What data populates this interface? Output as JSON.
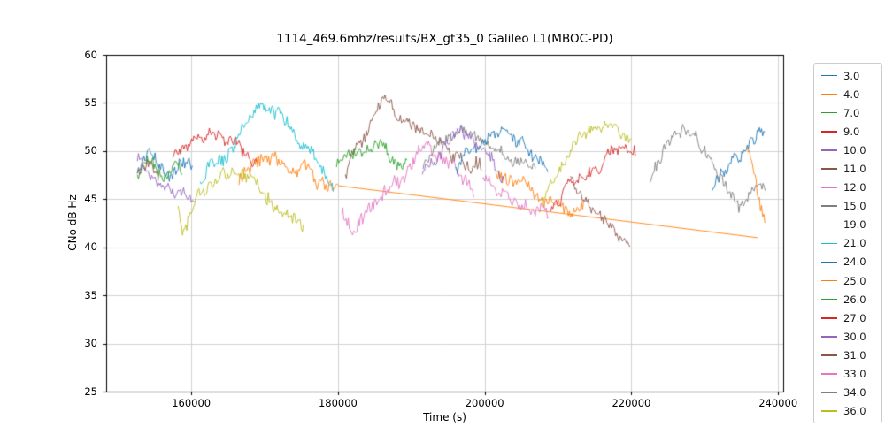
{
  "chart_data": {
    "type": "line",
    "title": "1114_469.6mhz/results/BX_gt35_0 Galileo L1(MBOC-PD)",
    "xlabel": "Time (s)",
    "ylabel": "CNo dB Hz",
    "xlim": [
      148400,
      240700
    ],
    "ylim": [
      25,
      60
    ],
    "xticks": [
      160000,
      180000,
      200000,
      220000,
      240000
    ],
    "yticks": [
      25,
      30,
      35,
      40,
      45,
      50,
      55,
      60
    ],
    "grid": true,
    "legend_position": "right-outside",
    "series": [
      {
        "name": "3.0",
        "color": "#1f77b4",
        "segments": [
          {
            "noise": 1.0,
            "points": [
              [
                152650,
                47.5
              ],
              [
                154500,
                49.6
              ],
              [
                156500,
                47.2
              ],
              [
                158500,
                48.8
              ],
              [
                160200,
                47.6
              ]
            ]
          },
          {
            "noise": 0.9,
            "points": [
              [
                231000,
                46.5
              ],
              [
                233500,
                48.3
              ],
              [
                236000,
                50.6
              ],
              [
                238300,
                52.2
              ]
            ]
          }
        ]
      },
      {
        "name": "4.0",
        "color": "#ff7f0e",
        "segments": [
          {
            "noise": 1.0,
            "points": [
              [
                166500,
                46.6
              ],
              [
                168500,
                49.4
              ],
              [
                171000,
                49.8
              ],
              [
                173500,
                47.2
              ],
              [
                176000,
                48.4
              ],
              [
                178500,
                46.6
              ],
              [
                180000,
                46.4
              ]
            ]
          },
          {
            "noise": 0,
            "points": [
              [
                180000,
                46.4
              ],
              [
                237200,
                41.0
              ]
            ]
          }
        ]
      },
      {
        "name": "7.0",
        "color": "#2ca02c",
        "segments": [
          {
            "noise": 1.0,
            "points": [
              [
                152650,
                47.0
              ],
              [
                154000,
                49.6
              ],
              [
                156000,
                46.6
              ],
              [
                158000,
                48.8
              ],
              [
                158900,
                47.2
              ]
            ]
          }
        ]
      },
      {
        "name": "9.0",
        "color": "#d62728",
        "segments": [
          {
            "noise": 0.9,
            "points": [
              [
                157500,
                49.4
              ],
              [
                160000,
                51.0
              ],
              [
                162500,
                52.0
              ],
              [
                165000,
                51.4
              ],
              [
                167000,
                50.2
              ],
              [
                168900,
                49.4
              ]
            ]
          }
        ]
      },
      {
        "name": "10.0",
        "color": "#9467bd",
        "segments": [
          {
            "noise": 0.9,
            "points": [
              [
                152650,
                49.4
              ],
              [
                154500,
                47.6
              ],
              [
                156500,
                46.2
              ],
              [
                158500,
                45.4
              ],
              [
                160500,
                44.9
              ]
            ]
          }
        ]
      },
      {
        "name": "11.0",
        "color": "#8c564b",
        "segments": [
          {
            "noise": 0.8,
            "points": [
              [
                152650,
                47.6
              ],
              [
                154200,
                48.6
              ],
              [
                155600,
                47.2
              ]
            ]
          },
          {
            "noise": 1.1,
            "points": [
              [
                181000,
                47.6
              ],
              [
                183000,
                51.0
              ],
              [
                185000,
                53.8
              ],
              [
                186200,
                54.6
              ],
              [
                188000,
                53.4
              ],
              [
                190500,
                52.2
              ],
              [
                193000,
                51.2
              ],
              [
                195500,
                50.2
              ],
              [
                198000,
                49.0
              ],
              [
                199700,
                48.2
              ]
            ]
          }
        ]
      },
      {
        "name": "12.0",
        "color": "#e377c2",
        "segments": [
          {
            "noise": 1.2,
            "points": [
              [
                180500,
                44.0
              ],
              [
                182000,
                42.8
              ],
              [
                184000,
                44.4
              ],
              [
                186500,
                46.4
              ],
              [
                189000,
                48.0
              ],
              [
                191500,
                49.2
              ],
              [
                194000,
                49.6
              ],
              [
                196500,
                48.2
              ],
              [
                198500,
                46.2
              ]
            ]
          }
        ]
      },
      {
        "name": "15.0",
        "color": "#7f7f7f",
        "segments": [
          {
            "noise": 0.9,
            "points": [
              [
                191600,
                48.6
              ],
              [
                193600,
                50.6
              ],
              [
                195600,
                51.8
              ],
              [
                197600,
                52.3
              ],
              [
                199600,
                51.6
              ],
              [
                201600,
                50.6
              ],
              [
                203600,
                49.6
              ],
              [
                205600,
                48.6
              ],
              [
                206900,
                48.1
              ]
            ]
          }
        ]
      },
      {
        "name": "19.0",
        "color": "#bcbd22",
        "segments": [
          {
            "noise": 1.1,
            "points": [
              [
                158200,
                44.0
              ],
              [
                158800,
                40.6
              ],
              [
                159600,
                43.0
              ],
              [
                161000,
                45.0
              ],
              [
                163000,
                46.6
              ],
              [
                165500,
                47.3
              ],
              [
                168000,
                46.8
              ],
              [
                170500,
                45.6
              ],
              [
                172500,
                44.2
              ],
              [
                174200,
                42.6
              ],
              [
                175400,
                42.3
              ]
            ]
          }
        ]
      },
      {
        "name": "21.0",
        "color": "#17becf",
        "segments": [
          {
            "noise": 1.1,
            "points": [
              [
                161200,
                46.6
              ],
              [
                163000,
                48.6
              ],
              [
                165500,
                50.6
              ],
              [
                168000,
                52.6
              ],
              [
                169800,
                54.0
              ],
              [
                171200,
                54.3
              ],
              [
                173000,
                53.0
              ],
              [
                175000,
                51.2
              ],
              [
                176800,
                49.2
              ],
              [
                178300,
                47.2
              ],
              [
                179400,
                46.4
              ]
            ]
          }
        ]
      },
      {
        "name": "24.0",
        "color": "#1f77b4",
        "segments": [
          {
            "noise": 1.0,
            "points": [
              [
                196000,
                48.2
              ],
              [
                198500,
                50.6
              ],
              [
                201000,
                52.0
              ],
              [
                203000,
                52.3
              ],
              [
                205000,
                50.6
              ],
              [
                207000,
                48.6
              ],
              [
                208600,
                47.6
              ]
            ]
          }
        ]
      },
      {
        "name": "25.0",
        "color": "#ff7f0e",
        "segments": [
          {
            "noise": 1.1,
            "points": [
              [
                201500,
                47.6
              ],
              [
                204000,
                46.6
              ],
              [
                206500,
                45.6
              ],
              [
                209000,
                44.9
              ],
              [
                211500,
                44.4
              ],
              [
                213600,
                44.1
              ]
            ]
          },
          {
            "noise": 1.2,
            "points": [
              [
                235800,
                50.0
              ],
              [
                236800,
                47.0
              ],
              [
                237600,
                44.8
              ],
              [
                238400,
                43.4
              ]
            ]
          }
        ]
      },
      {
        "name": "26.0",
        "color": "#2ca02c",
        "segments": [
          {
            "noise": 0.9,
            "points": [
              [
                179800,
                48.2
              ],
              [
                182500,
                49.4
              ],
              [
                185000,
                50.3
              ],
              [
                187500,
                49.2
              ],
              [
                189500,
                48.2
              ]
            ]
          }
        ]
      },
      {
        "name": "27.0",
        "color": "#d62728",
        "segments": [
          {
            "noise": 1.0,
            "points": [
              [
                209000,
                44.2
              ],
              [
                211500,
                46.6
              ],
              [
                214000,
                48.0
              ],
              [
                216500,
                49.6
              ],
              [
                218500,
                50.3
              ],
              [
                220600,
                49.8
              ]
            ]
          }
        ]
      },
      {
        "name": "30.0",
        "color": "#9467bd",
        "segments": [
          {
            "noise": 1.0,
            "points": [
              [
                191500,
                47.2
              ],
              [
                193500,
                49.6
              ],
              [
                195500,
                51.2
              ],
              [
                197500,
                51.6
              ],
              [
                199500,
                50.2
              ],
              [
                201500,
                48.2
              ],
              [
                202600,
                47.2
              ]
            ]
          }
        ]
      },
      {
        "name": "31.0",
        "color": "#8c564b",
        "segments": [
          {
            "noise": 0.9,
            "points": [
              [
                211700,
                47.0
              ],
              [
                213500,
                45.6
              ],
              [
                215500,
                44.2
              ],
              [
                217000,
                42.8
              ],
              [
                218500,
                41.2
              ],
              [
                219900,
                39.7
              ]
            ]
          }
        ]
      },
      {
        "name": "33.0",
        "color": "#e377c2",
        "segments": [
          {
            "noise": 1.0,
            "points": [
              [
                199700,
                47.0
              ],
              [
                201500,
                46.0
              ],
              [
                203500,
                45.0
              ],
              [
                205500,
                44.4
              ],
              [
                207500,
                43.8
              ],
              [
                208800,
                43.5
              ]
            ]
          }
        ]
      },
      {
        "name": "34.0",
        "color": "#7f7f7f",
        "segments": [
          {
            "noise": 1.1,
            "points": [
              [
                222500,
                47.2
              ],
              [
                224500,
                50.2
              ],
              [
                226000,
                51.8
              ],
              [
                227500,
                52.2
              ],
              [
                229000,
                51.0
              ],
              [
                230500,
                49.6
              ],
              [
                232000,
                47.6
              ],
              [
                233500,
                45.6
              ],
              [
                234900,
                44.3
              ],
              [
                236300,
                45.4
              ],
              [
                238300,
                46.2
              ]
            ]
          }
        ]
      },
      {
        "name": "36.0",
        "color": "#bcbd22",
        "segments": [
          {
            "noise": 1.0,
            "points": [
              [
                207800,
                44.2
              ],
              [
                209500,
                47.6
              ],
              [
                211500,
                50.2
              ],
              [
                213500,
                52.2
              ],
              [
                215200,
                53.3
              ],
              [
                216800,
                53.0
              ],
              [
                218300,
                52.4
              ],
              [
                220000,
                51.4
              ]
            ]
          }
        ]
      }
    ]
  }
}
